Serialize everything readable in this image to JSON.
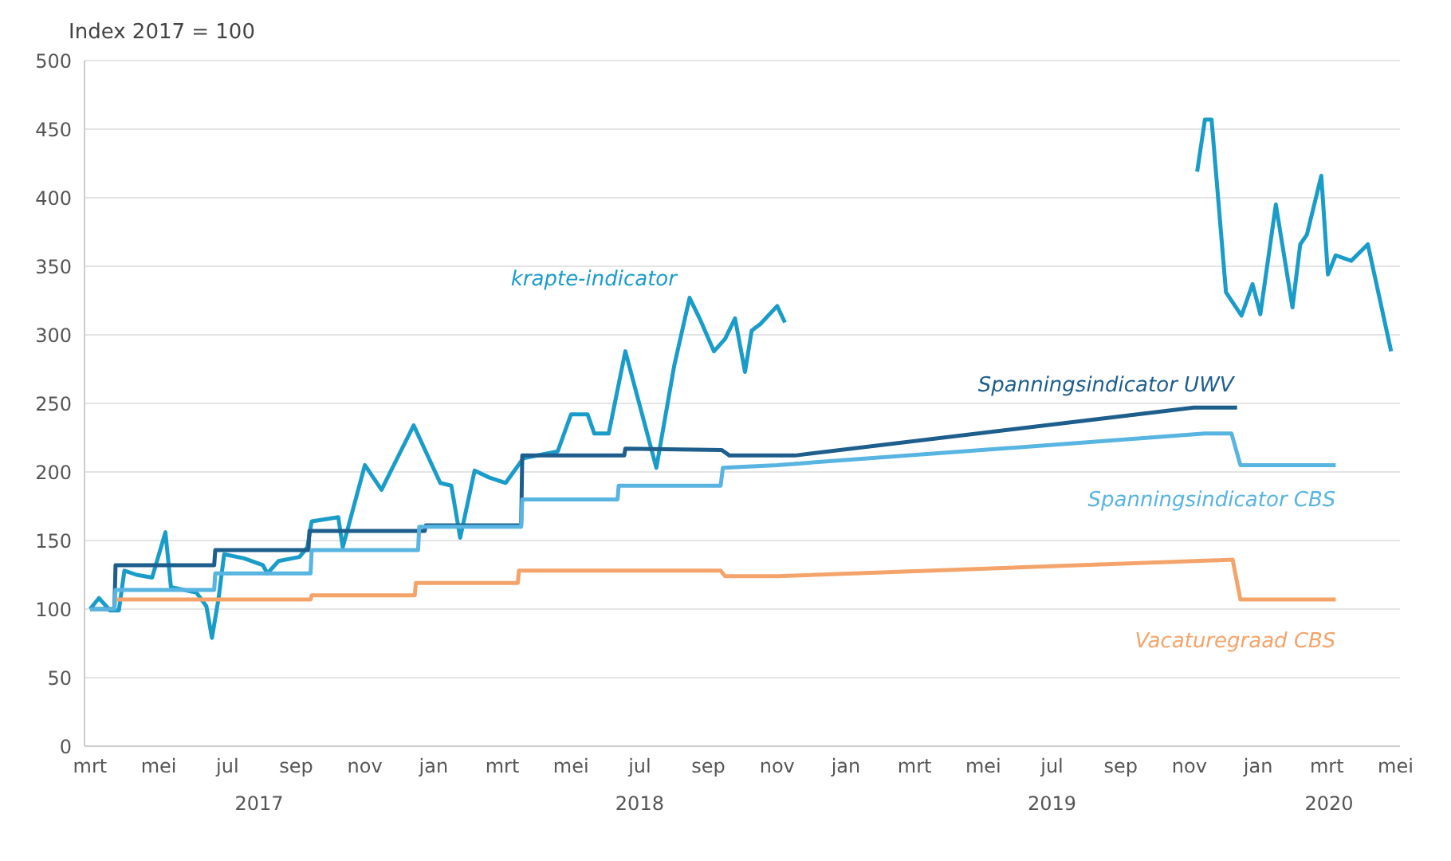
{
  "chart_data": {
    "type": "line",
    "ylabel": "Index 2017 = 100",
    "xlim": [
      "2017-02-27",
      "2020-05-05"
    ],
    "xticks": [
      {
        "value": "2017-03",
        "label": "mrt"
      },
      {
        "value": "2017-05",
        "label": "mei"
      },
      {
        "value": "2017-07",
        "label": "jul"
      },
      {
        "value": "2017-09",
        "label": "sep"
      },
      {
        "value": "2017-11",
        "label": "nov"
      },
      {
        "value": "2018-01",
        "label": "jan"
      },
      {
        "value": "2018-03",
        "label": "mrt"
      },
      {
        "value": "2018-05",
        "label": "mei"
      },
      {
        "value": "2018-07",
        "label": "jul"
      },
      {
        "value": "2018-09",
        "label": "sep"
      },
      {
        "value": "2018-11",
        "label": "nov"
      },
      {
        "value": "2019-01",
        "label": "jan"
      },
      {
        "value": "2019-03",
        "label": "mrt"
      },
      {
        "value": "2019-05",
        "label": "mei"
      },
      {
        "value": "2019-07",
        "label": "jul"
      },
      {
        "value": "2019-09",
        "label": "sep"
      },
      {
        "value": "2019-11",
        "label": "nov"
      },
      {
        "value": "2020-01",
        "label": "jan"
      },
      {
        "value": "2020-03",
        "label": "mrt"
      },
      {
        "value": "2020-05",
        "label": "mei"
      }
    ],
    "ylim": [
      0,
      500
    ],
    "yticks": [
      0,
      50,
      100,
      150,
      200,
      250,
      300,
      350,
      400,
      450,
      500
    ],
    "grid": "y",
    "marker": "none",
    "line_style": "solid",
    "annotations": [
      "2017",
      "2018",
      "2019",
      "2020"
    ],
    "series": [
      {
        "name": "krapte-indicator",
        "color": "#1a9cc9",
        "x": [
          "2017-03-01",
          "2017-03-09",
          "2017-03-19",
          "2017-03-27",
          "2017-04-01",
          "2017-04-12",
          "2017-04-26",
          "2017-05-07",
          "2017-05-12",
          "2017-06-04",
          "2017-06-13",
          "2017-06-18",
          "2017-06-24",
          "2017-06-29",
          "2017-07-16",
          "2017-08-02",
          "2017-08-06",
          "2017-08-16",
          "2017-09-04",
          "2017-09-11",
          "2017-09-15",
          "2017-10-08",
          "2017-10-12",
          "2017-11-01",
          "2017-11-16",
          "2017-12-14",
          "2018-01-07",
          "2018-01-17",
          "2018-01-25",
          "2018-02-07",
          "2018-02-20",
          "2018-03-04",
          "2018-03-20",
          "2018-04-20",
          "2018-05-01",
          "2018-05-16",
          "2018-05-22",
          "2018-06-04",
          "2018-06-19",
          "2018-07-16",
          "2018-08-01",
          "2018-08-15",
          "2018-08-24",
          "2018-09-06",
          "2018-09-16",
          "2018-09-25",
          "2018-10-03",
          "2018-10-09",
          "2018-10-17",
          "2018-11-01",
          "2018-11-08",
          "2019-06-01",
          "2019-11-08",
          "2019-11-15",
          "2019-11-21",
          "2019-12-03",
          "2019-12-17",
          "2019-12-27",
          "2020-01-03",
          "2020-01-17",
          "2020-02-01",
          "2020-02-08",
          "2020-02-14",
          "2020-02-27",
          "2020-03-02",
          "2020-03-09",
          "2020-03-23",
          "2020-04-07",
          "2020-04-28"
        ],
        "values": [
          100,
          108,
          99,
          99,
          128,
          125,
          123,
          156,
          116,
          112,
          102,
          79,
          108,
          140,
          137,
          132,
          126,
          135,
          138,
          145,
          164,
          167,
          145,
          205,
          187,
          234,
          192,
          190,
          152,
          201,
          196,
          192,
          210,
          215,
          242,
          242,
          228,
          228,
          288,
          203,
          277,
          327,
          312,
          288,
          297,
          312,
          273,
          303,
          308,
          321,
          309,
          null,
          419,
          457,
          457,
          331,
          314,
          337,
          315,
          395,
          320,
          366,
          373,
          416,
          344,
          358,
          354,
          366,
          288
        ]
      },
      {
        "name": "Spanningsindicator UWV",
        "color": "#1d5e8c",
        "x": [
          "2017-03-01",
          "2017-03-23",
          "2017-03-24",
          "2017-06-20",
          "2017-06-21",
          "2017-09-12",
          "2017-09-13",
          "2017-12-24",
          "2017-12-25",
          "2018-03-18",
          "2018-03-19",
          "2018-06-18",
          "2018-06-19",
          "2018-09-13",
          "2018-09-20",
          "2018-11-17",
          "2019-11-05",
          "2019-12-13"
        ],
        "values": [
          100,
          100,
          132,
          132,
          143,
          143,
          157,
          157,
          161,
          161,
          212,
          212,
          217,
          216,
          212,
          212,
          247,
          247
        ]
      },
      {
        "name": "Spanningsindicator CBS",
        "color": "#58b4e0",
        "x": [
          "2017-03-01",
          "2017-03-23",
          "2017-03-24",
          "2017-06-20",
          "2017-06-21",
          "2017-09-14",
          "2017-09-15",
          "2017-12-18",
          "2017-12-19",
          "2018-03-18",
          "2018-03-19",
          "2018-06-12",
          "2018-06-13",
          "2018-09-12",
          "2018-09-14",
          "2018-11-01",
          "2019-11-15",
          "2019-12-08",
          "2019-12-16",
          "2020-03-09"
        ],
        "values": [
          100,
          100,
          114,
          114,
          126,
          126,
          143,
          143,
          160,
          160,
          180,
          180,
          190,
          190,
          203,
          205,
          228,
          228,
          205,
          205
        ]
      },
      {
        "name": "Vacaturegraad CBS",
        "color": "#f4a46a",
        "x": [
          "2017-03-25",
          "2017-09-14",
          "2017-09-15",
          "2017-12-15",
          "2017-12-16",
          "2018-03-15",
          "2018-03-16",
          "2018-09-12",
          "2018-09-16",
          "2018-11-01",
          "2019-12-09",
          "2019-12-16",
          "2020-03-09"
        ],
        "values": [
          107,
          107,
          110,
          110,
          119,
          119,
          128,
          128,
          124,
          124,
          136,
          107,
          107
        ]
      }
    ]
  }
}
